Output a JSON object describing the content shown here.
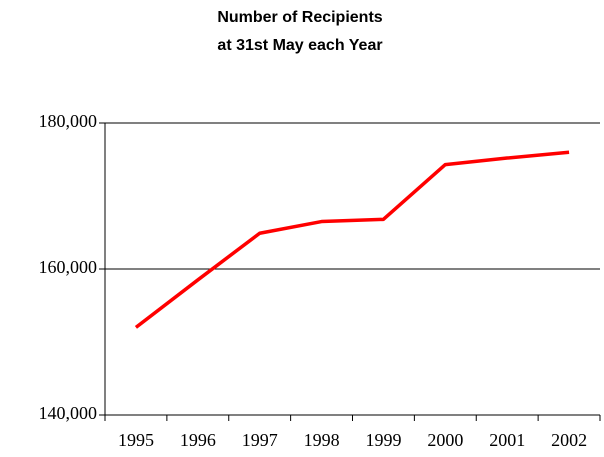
{
  "chart_data": {
    "type": "line",
    "title": [
      "Number of Recipients",
      "at 31st May each Year"
    ],
    "categories": [
      "1995",
      "1996",
      "1997",
      "1998",
      "1999",
      "2000",
      "2001",
      "2002"
    ],
    "series": [
      {
        "name": "Recipients",
        "color": "#ff0000",
        "values": [
          152000,
          158500,
          164900,
          166500,
          166800,
          174300,
          175200,
          176000
        ]
      }
    ],
    "ylim": [
      140000,
      180000
    ],
    "yticks": [
      {
        "value": 140000,
        "label": "140,000"
      },
      {
        "value": 160000,
        "label": "160,000"
      },
      {
        "value": 180000,
        "label": "180,000"
      }
    ],
    "grid": true
  }
}
